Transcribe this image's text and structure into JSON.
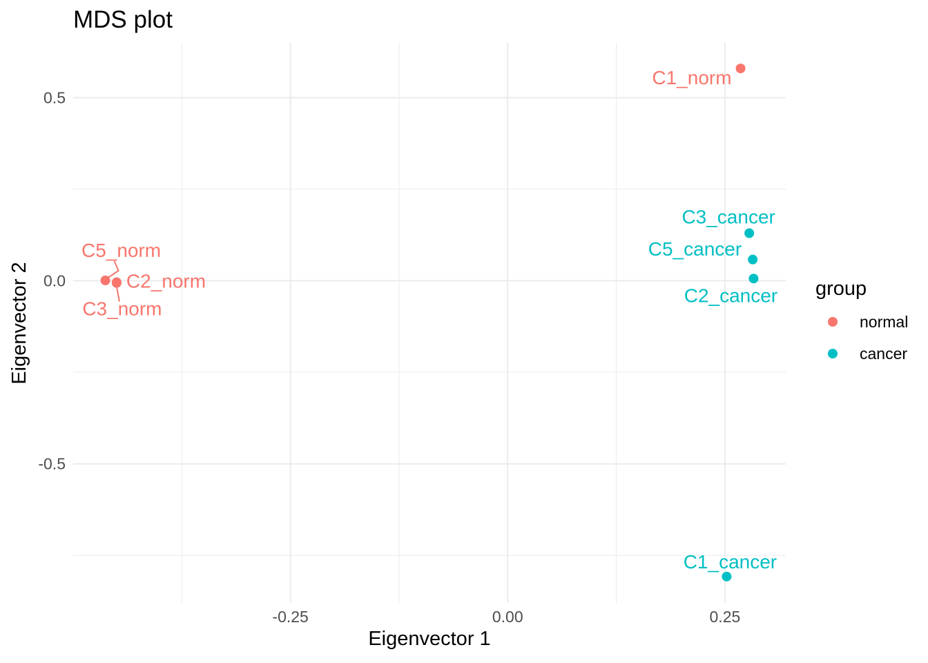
{
  "chart_data": {
    "type": "scatter",
    "title": "MDS plot",
    "xlabel": "Eigenvector 1",
    "ylabel": "Eigenvector 2",
    "xlim": [
      -0.5,
      0.32
    ],
    "ylim": [
      -0.88,
      0.65
    ],
    "grid": {
      "on": true,
      "color": "#EBEBEB",
      "major_width": 2,
      "minor_width": 1
    },
    "x_ticks": {
      "values": [
        -0.25,
        0.0,
        0.25
      ],
      "labels": [
        "-0.25",
        "0.00",
        "0.25"
      ],
      "minor": [
        -0.375,
        -0.125,
        0.125
      ]
    },
    "y_ticks": {
      "values": [
        0.5,
        0.0,
        -0.5
      ],
      "labels": [
        "0.5",
        "0.0",
        "-0.5"
      ],
      "minor": [
        0.25,
        -0.25,
        -0.75
      ]
    },
    "tick_label_color": "#4D4D4D",
    "point_radius": 7,
    "point_label_font_size": 28,
    "legend": {
      "title": "group",
      "position": "right",
      "items": [
        {
          "label": "normal",
          "color": "#F8766D"
        },
        {
          "label": "cancer",
          "color": "#00BFC4"
        }
      ]
    },
    "series": [
      {
        "name": "normal",
        "color": "#F8766D",
        "points": [
          {
            "label": "C1_norm",
            "x": 0.268,
            "y": 0.58,
            "anchor": "end",
            "dx": -13,
            "dy": 23
          },
          {
            "label": "C5_norm",
            "x": -0.463,
            "y": 0.001,
            "anchor": "middle",
            "dx": 23,
            "dy": -34,
            "leader": [
              [
                13,
                -28
              ],
              [
                19,
                -14
              ],
              [
                4,
                -4
              ]
            ]
          },
          {
            "label": "C2_norm",
            "x": -0.45,
            "y": -0.004,
            "anchor": "start",
            "dx": 14,
            "dy": 8
          },
          {
            "label": "C3_norm",
            "x": -0.45,
            "y": -0.006,
            "anchor": "middle",
            "dx": 8,
            "dy": 47,
            "leader": [
              [
                4,
                27
              ],
              [
                0,
                5
              ]
            ]
          }
        ]
      },
      {
        "name": "cancer",
        "color": "#00BFC4",
        "points": [
          {
            "label": "C3_cancer",
            "x": 0.278,
            "y": 0.13,
            "anchor": "middle",
            "dx": -30,
            "dy": -14
          },
          {
            "label": "C5_cancer",
            "x": 0.282,
            "y": 0.058,
            "anchor": "end",
            "dx": -16,
            "dy": -6
          },
          {
            "label": "C2_cancer",
            "x": 0.283,
            "y": 0.006,
            "anchor": "middle",
            "dx": -33,
            "dy": 34
          },
          {
            "label": "C1_cancer",
            "x": 0.252,
            "y": -0.808,
            "anchor": "middle",
            "dx": 5,
            "dy": -12
          }
        ]
      }
    ]
  }
}
